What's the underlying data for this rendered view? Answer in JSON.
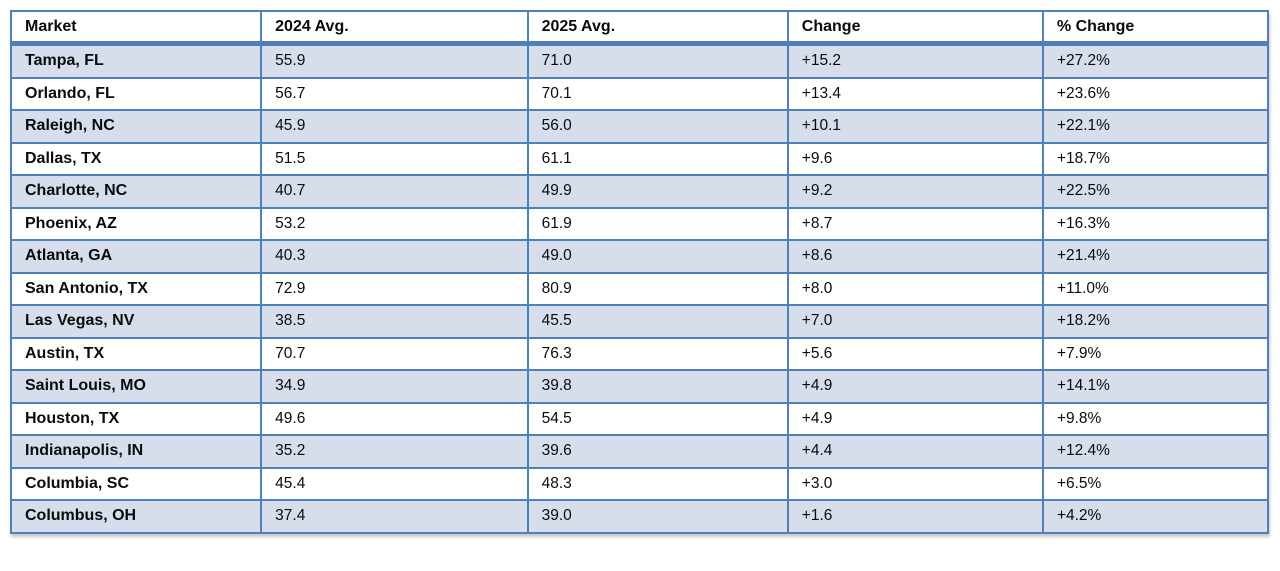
{
  "chart_data": {
    "type": "table",
    "title": "",
    "columns": [
      "Market",
      "2024 Avg.",
      "2025 Avg.",
      "Change",
      "% Change"
    ],
    "rows": [
      [
        "Tampa, FL",
        "55.9",
        "71.0",
        "+15.2",
        "+27.2%"
      ],
      [
        "Orlando, FL",
        "56.7",
        "70.1",
        "+13.4",
        "+23.6%"
      ],
      [
        "Raleigh, NC",
        "45.9",
        "56.0",
        "+10.1",
        "+22.1%"
      ],
      [
        "Dallas, TX",
        "51.5",
        "61.1",
        "+9.6",
        "+18.7%"
      ],
      [
        "Charlotte, NC",
        "40.7",
        "49.9",
        "+9.2",
        "+22.5%"
      ],
      [
        "Phoenix, AZ",
        "53.2",
        "61.9",
        "+8.7",
        "+16.3%"
      ],
      [
        "Atlanta, GA",
        "40.3",
        "49.0",
        "+8.6",
        "+21.4%"
      ],
      [
        "San Antonio, TX",
        "72.9",
        "80.9",
        "+8.0",
        "+11.0%"
      ],
      [
        "Las Vegas, NV",
        "38.5",
        "45.5",
        "+7.0",
        "+18.2%"
      ],
      [
        "Austin, TX",
        "70.7",
        "76.3",
        "+5.6",
        "+7.9%"
      ],
      [
        "Saint Louis, MO",
        "34.9",
        "39.8",
        "+4.9",
        "+14.1%"
      ],
      [
        "Houston, TX",
        "49.6",
        "54.5",
        "+4.9",
        "+9.8%"
      ],
      [
        "Indianapolis, IN",
        "35.2",
        "39.6",
        "+4.4",
        "+12.4%"
      ],
      [
        "Columbia, SC",
        "45.4",
        "48.3",
        "+3.0",
        "+6.5%"
      ],
      [
        "Columbus, OH",
        "37.4",
        "39.0",
        "+1.6",
        "+4.2%"
      ]
    ],
    "layout": {
      "banded_rows": "odd rows starting with first data row",
      "grid": "all borders",
      "header_position": "top"
    }
  },
  "colors": {
    "border_blue": "#4E80BC",
    "band_fill": "#D6DEEB",
    "header_fill": "#FFFFFF",
    "text": "#0B0B0B"
  }
}
